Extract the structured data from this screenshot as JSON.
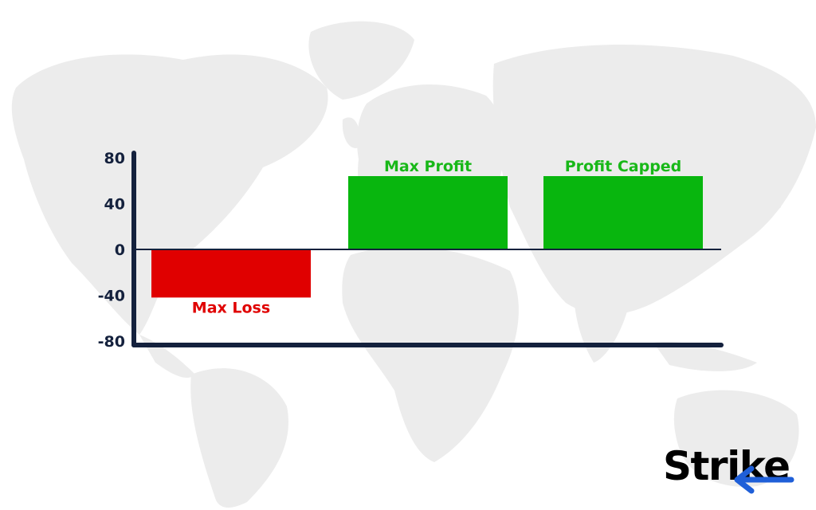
{
  "chart_data": {
    "type": "bar",
    "categories": [
      "Max Loss",
      "Max Profit",
      "Profit Capped"
    ],
    "values": [
      -42,
      64,
      64
    ],
    "colors": [
      "#e00000",
      "#08b60e",
      "#08b60e"
    ],
    "label_colors": [
      "#e00000",
      "#18b818",
      "#18b818"
    ],
    "ylim": [
      -80,
      80
    ],
    "yticks": [
      "80",
      "40",
      "0",
      "-40",
      "-80"
    ],
    "ytick_values": [
      80,
      40,
      0,
      -40,
      -80
    ],
    "xlabel": "",
    "ylabel": "",
    "title": "",
    "grid": false,
    "axis_color": "#14213d"
  },
  "brand": {
    "logo_text": "Strike",
    "logo_text_color": "#000000",
    "logo_accent_color": "#1f5fd8"
  },
  "background": {
    "icon": "world-map",
    "color": "#ececec"
  }
}
